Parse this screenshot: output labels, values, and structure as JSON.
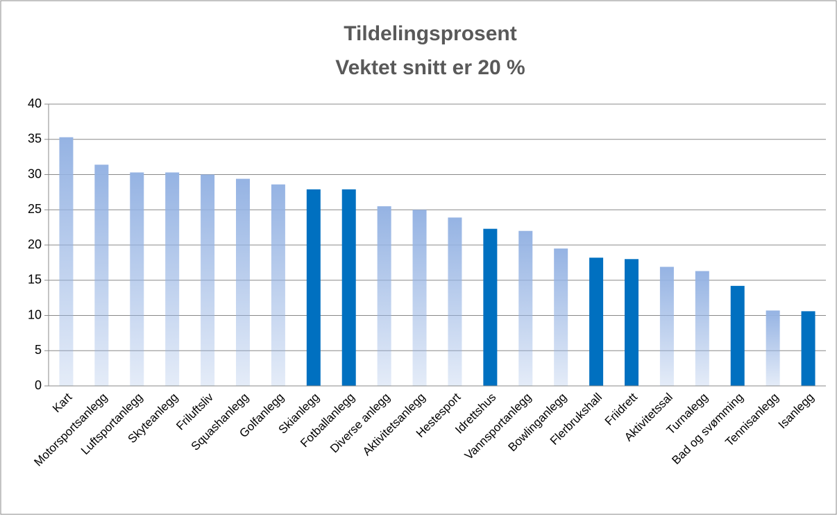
{
  "chart_data": {
    "type": "bar",
    "title": "Tildelingsprosent",
    "subtitle": "Vektet snitt er 20 %",
    "categories": [
      "Kart",
      "Motorsportsanlegg",
      "Luftsportanlegg",
      "Skyteanlegg",
      "Friluftsliv",
      "Squashanlegg",
      "Golfanlegg",
      "Skianlegg",
      "Fotballanlegg",
      "Diverse anlegg",
      "Aktivitetsanlegg",
      "Hestesport",
      "Idrettshus",
      "Vannsportanlegg",
      "Bowlinganlegg",
      "Flerbrukshall",
      "Friidrett",
      "Aktivitetssal",
      "Turnalegg",
      "Bad og svømming",
      "Tennisanlegg",
      "Isanlegg"
    ],
    "values": [
      35.3,
      31.4,
      30.3,
      30.3,
      30.0,
      29.4,
      28.6,
      27.9,
      27.9,
      25.5,
      25.0,
      23.9,
      22.3,
      22.0,
      19.5,
      18.2,
      18.0,
      16.9,
      16.3,
      14.2,
      10.7,
      10.6
    ],
    "colors": [
      "#95b3e3",
      "#95b3e3",
      "#95b3e3",
      "#95b3e3",
      "#95b3e3",
      "#95b3e3",
      "#95b3e3",
      "#0070c0",
      "#0070c0",
      "#95b3e3",
      "#95b3e3",
      "#95b3e3",
      "#0070c0",
      "#95b3e3",
      "#95b3e3",
      "#0070c0",
      "#0070c0",
      "#95b3e3",
      "#95b3e3",
      "#0070c0",
      "#95b3e3",
      "#0070c0"
    ],
    "ylim": [
      0,
      40
    ],
    "yticks": [
      0,
      5,
      10,
      15,
      20,
      25,
      30,
      35,
      40
    ],
    "grid": true
  }
}
